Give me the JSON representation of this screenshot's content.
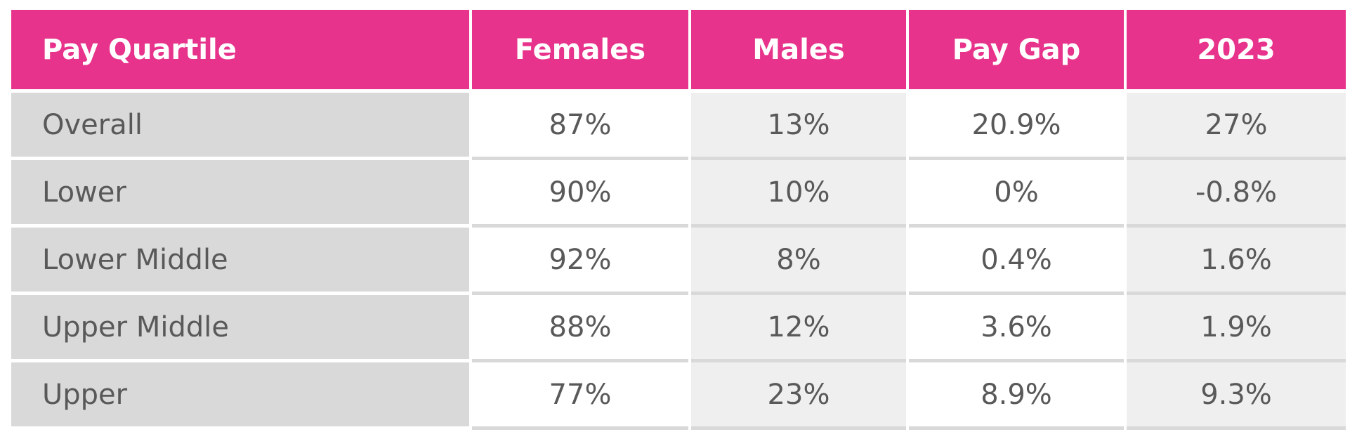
{
  "chart_data": {
    "type": "table",
    "columns": [
      "Pay Quartile",
      "Females",
      "Males",
      "Pay Gap",
      "2023"
    ],
    "rows": [
      [
        "Overall",
        "87%",
        "13%",
        "20.9%",
        "27%"
      ],
      [
        "Lower",
        "90%",
        "10%",
        "0%",
        "-0.8%"
      ],
      [
        "Lower Middle",
        "92%",
        "8%",
        "0.4%",
        "1.6%"
      ],
      [
        "Upper Middle",
        "88%",
        "12%",
        "3.6%",
        "1.9%"
      ],
      [
        "Upper",
        "77%",
        "23%",
        "8.9%",
        "9.3%"
      ]
    ]
  },
  "colors": {
    "header_bg": "#E7338B",
    "header_text": "#FFFFFF",
    "row_label_bg": "#D9D9D9",
    "cell_white_bg": "#FFFFFF",
    "cell_shaded_bg": "#EFEFEF",
    "row_divider": "#D9D9D9",
    "body_text": "#595959",
    "page_bg": "#FFFFFF"
  }
}
